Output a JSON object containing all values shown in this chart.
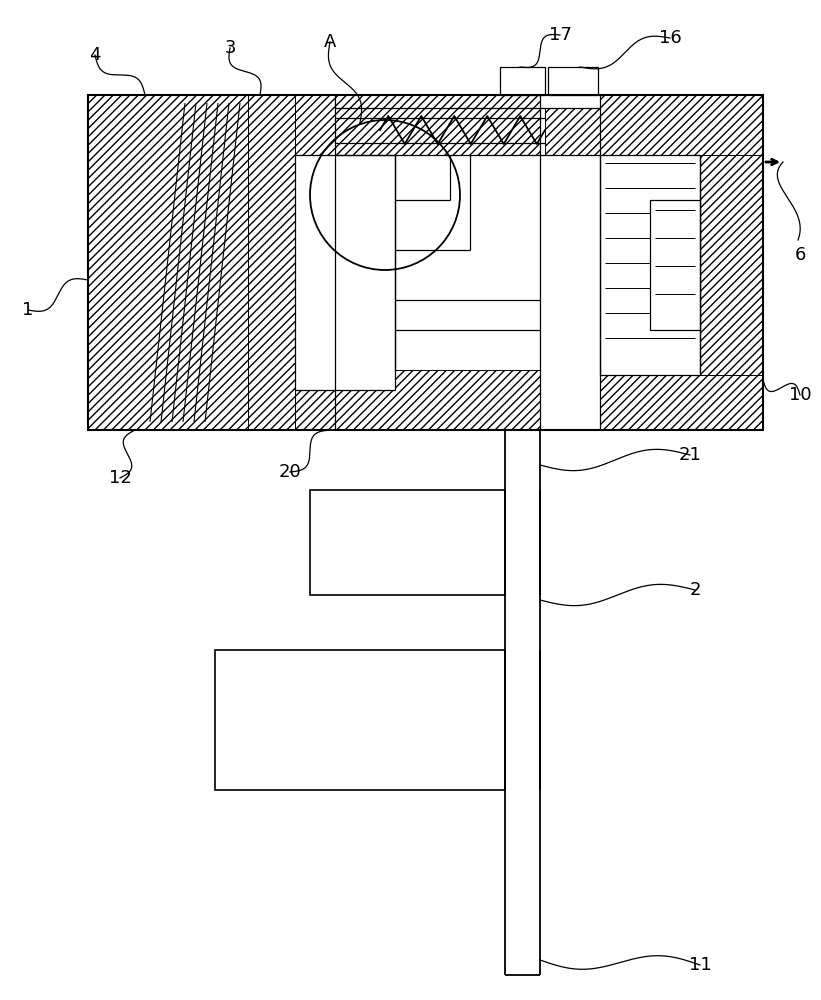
{
  "bg_color": "#ffffff",
  "line_color": "#000000",
  "lw_main": 1.5,
  "lw_inner": 0.9,
  "lw_hatch": 0.7,
  "fig_width": 8.21,
  "fig_height": 10.0,
  "dpi": 100
}
